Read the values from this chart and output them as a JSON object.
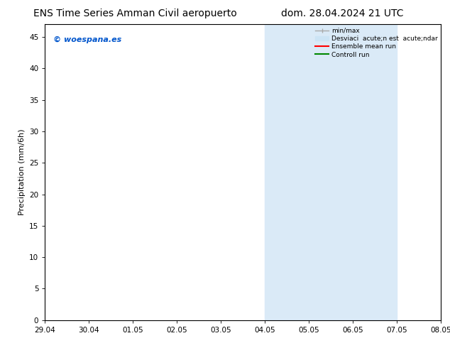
{
  "title_left": "ENS Time Series Amman Civil aeropuerto",
  "title_right": "dom. 28.04.2024 21 UTC",
  "ylabel": "Precipitation (mm/6h)",
  "xlabel_ticks": [
    "29.04",
    "30.04",
    "01.05",
    "02.05",
    "03.05",
    "04.05",
    "05.05",
    "06.05",
    "07.05",
    "08.05"
  ],
  "xlim": [
    0,
    9
  ],
  "ylim": [
    0,
    47
  ],
  "yticks": [
    0,
    5,
    10,
    15,
    20,
    25,
    30,
    35,
    40,
    45
  ],
  "background_color": "#ffffff",
  "plot_bg_color": "#ffffff",
  "watermark_text": "© woespana.es",
  "watermark_color": "#0055cc",
  "shaded_regions": [
    {
      "x_start": 5,
      "x_end": 7,
      "color": "#daeaf7"
    },
    {
      "x_start": 7,
      "x_end": 8,
      "color": "#daeaf7"
    }
  ],
  "legend_label1": "min/max",
  "legend_label2": "Desviaci  acute;n est  acute;ndar",
  "legend_label3": "Ensemble mean run",
  "legend_label4": "Controll run",
  "legend_color1": "#aaaaaa",
  "legend_color2": "#cce4f5",
  "legend_color3": "#ff0000",
  "legend_color4": "#008800",
  "title_fontsize": 10,
  "tick_fontsize": 7.5,
  "ylabel_fontsize": 8,
  "watermark_fontsize": 8
}
